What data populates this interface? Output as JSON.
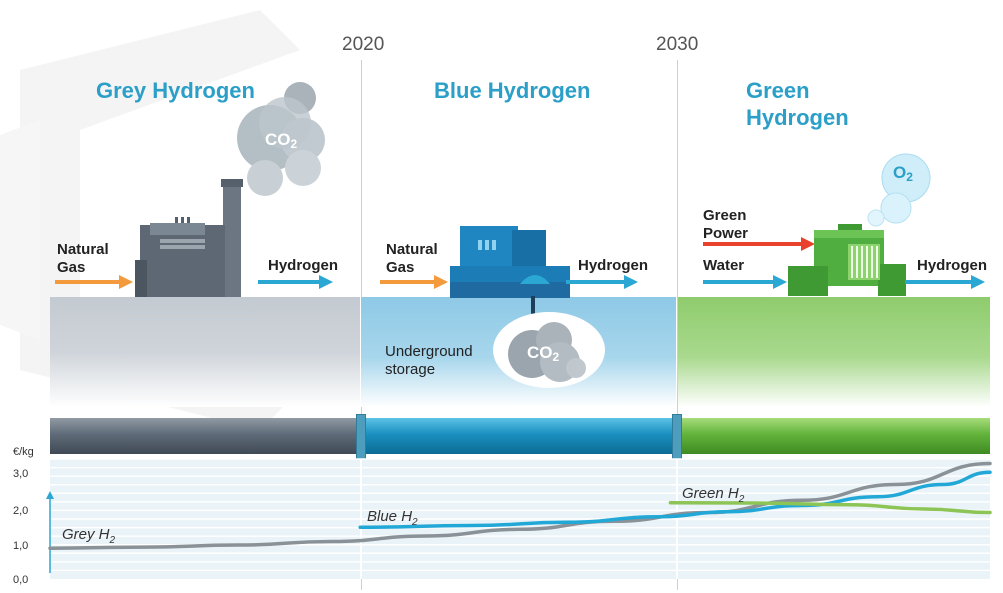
{
  "timeline": {
    "year_2020": "2020",
    "year_2030": "2030"
  },
  "panels": {
    "grey": {
      "title": "Grey Hydrogen",
      "input_label": "Natural Gas",
      "input_line1": "Natural",
      "input_line2": "Gas",
      "output_label": "Hydrogen",
      "emission": "CO2",
      "emission_main": "CO",
      "emission_sub": "2"
    },
    "blue": {
      "title": "Blue Hydrogen",
      "input_line1": "Natural",
      "input_line2": "Gas",
      "output_label": "Hydrogen",
      "storage_line1": "Underground",
      "storage_line2": "storage",
      "storage_main": "CO",
      "storage_sub": "2"
    },
    "green": {
      "title_line1": "Green",
      "title_line2": "Hydrogen",
      "power_line1": "Green",
      "power_line2": "Power",
      "water_label": "Water",
      "output_label": "Hydrogen",
      "emission_main": "O",
      "emission_sub": "2"
    }
  },
  "colors": {
    "title_blue": "#2b9fc8",
    "arrow_orange": "#f39a3c",
    "arrow_blue": "#2aa7d3",
    "arrow_red": "#e8412c",
    "grey_series": "#8a9297",
    "blue_series": "#21a8d6",
    "green_series": "#8cc455"
  },
  "chart_data": {
    "type": "line",
    "ylabel": "€/kg",
    "y_ticks": [
      "0,0",
      "1,0",
      "2,0",
      "3,0"
    ],
    "ylim": [
      0,
      3.5
    ],
    "x_markers": [
      "2020",
      "2030"
    ],
    "series": [
      {
        "name": "Grey H2",
        "label_main": "Grey H",
        "label_sub": "2",
        "color": "#8a9297",
        "points": [
          [
            0.0,
            0.88
          ],
          [
            0.1,
            0.91
          ],
          [
            0.2,
            0.97
          ],
          [
            0.3,
            1.07
          ],
          [
            0.4,
            1.23
          ],
          [
            0.5,
            1.42
          ],
          [
            0.6,
            1.65
          ],
          [
            0.7,
            1.9
          ],
          [
            0.8,
            2.25
          ],
          [
            0.9,
            2.7
          ],
          [
            1.0,
            3.3
          ]
        ]
      },
      {
        "name": "Blue H2",
        "label_main": "Blue H",
        "label_sub": "2",
        "color": "#21a8d6",
        "points": [
          [
            0.33,
            1.48
          ],
          [
            0.45,
            1.53
          ],
          [
            0.55,
            1.62
          ],
          [
            0.65,
            1.78
          ],
          [
            0.72,
            1.92
          ],
          [
            0.8,
            2.1
          ],
          [
            0.88,
            2.35
          ],
          [
            0.95,
            2.7
          ],
          [
            1.0,
            3.05
          ]
        ]
      },
      {
        "name": "Green H2",
        "label_main": "Green H",
        "label_sub": "2",
        "color": "#8cc455",
        "points": [
          [
            0.66,
            2.18
          ],
          [
            0.75,
            2.17
          ],
          [
            0.85,
            2.12
          ],
          [
            0.93,
            2.0
          ],
          [
            1.0,
            1.9
          ]
        ]
      }
    ]
  }
}
